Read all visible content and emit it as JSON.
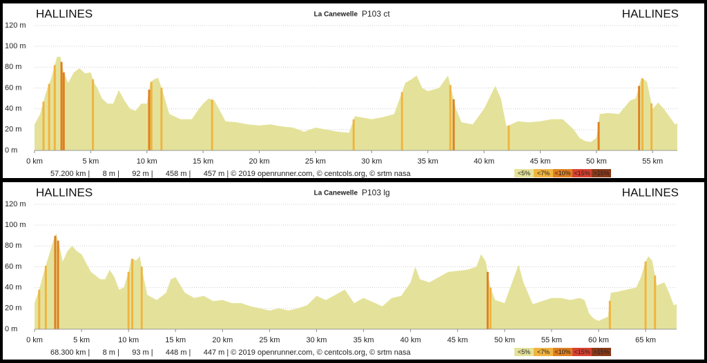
{
  "chart_data": [
    {
      "type": "area",
      "title": "La Canewelle",
      "subtitle": "P103 ct",
      "start_label": "HALLINES",
      "end_label": "HALLINES",
      "x": [
        0,
        0.5,
        1,
        1.5,
        2,
        2.3,
        2.6,
        3,
        3.5,
        4,
        4.5,
        5,
        5.3,
        5.6,
        6,
        6.5,
        7,
        7.5,
        8,
        8.5,
        9,
        9.5,
        10,
        10.3,
        10.6,
        11,
        11.4,
        12,
        13,
        14,
        14.5,
        15,
        15.5,
        16,
        16.5,
        17,
        18,
        19,
        20,
        21,
        22,
        23,
        24,
        25,
        26,
        27,
        28,
        28.5,
        29,
        30,
        31,
        32,
        33,
        33.5,
        34,
        34.5,
        35,
        36,
        36.8,
        37.5,
        38,
        39,
        40,
        41,
        41.5,
        42,
        43,
        44,
        45,
        46,
        47,
        48,
        48.5,
        49,
        49.5,
        50,
        50.3,
        51,
        52,
        53,
        53.5,
        54,
        54.5,
        55,
        55.5,
        56,
        57,
        57.2
      ],
      "values": [
        25,
        35,
        55,
        70,
        90,
        90,
        75,
        65,
        75,
        79,
        74,
        75,
        65,
        60,
        50,
        45,
        45,
        58,
        48,
        40,
        38,
        45,
        45,
        65,
        68,
        70,
        57,
        35,
        30,
        30,
        38,
        45,
        50,
        48,
        38,
        28,
        27,
        25,
        24,
        25,
        23,
        22,
        18,
        22,
        20,
        18,
        17,
        33,
        32,
        30,
        32,
        35,
        65,
        68,
        72,
        60,
        57,
        60,
        72,
        40,
        27,
        25,
        40,
        62,
        50,
        23,
        28,
        27,
        28,
        30,
        30,
        20,
        12,
        9,
        8,
        12,
        35,
        36,
        35,
        48,
        50,
        70,
        66,
        40,
        46,
        40,
        25,
        26
      ],
      "color": "#e4e29a",
      "steep_x": [
        0.8,
        1.3,
        1.8,
        2.4,
        2.6,
        5.2,
        10.2,
        10.4,
        11.3,
        15.8,
        28.4,
        32.7,
        37.0,
        37.3,
        42.2,
        50.2,
        53.8,
        54.1,
        54.9
      ],
      "steep_color": [
        "#f0b440",
        "#f0b440",
        "#f0b440",
        "#e07f20",
        "#e07f20",
        "#f0b440",
        "#e07f20",
        "#f0b440",
        "#f0b440",
        "#f0b440",
        "#f0b440",
        "#f0b440",
        "#f0b440",
        "#e07f20",
        "#f0b440",
        "#e07f20",
        "#e07f20",
        "#f0b440",
        "#f0b440"
      ],
      "xlim": [
        0,
        57.2
      ],
      "xticks": [
        {
          "value": 0,
          "label": "0 km"
        },
        {
          "value": 5,
          "label": "5 km"
        },
        {
          "value": 10,
          "label": "10 km"
        },
        {
          "value": 15,
          "label": "15 km"
        },
        {
          "value": 20,
          "label": "20 km"
        },
        {
          "value": 25,
          "label": "25 km"
        },
        {
          "value": 30,
          "label": "30 km"
        },
        {
          "value": 35,
          "label": "35 km"
        },
        {
          "value": 40,
          "label": "40 km"
        },
        {
          "value": 45,
          "label": "45 km"
        },
        {
          "value": 50,
          "label": "50 km"
        },
        {
          "value": 55,
          "label": "55 km"
        }
      ],
      "ylim": [
        0,
        120
      ],
      "yticks": [
        {
          "value": 0,
          "label": "0 m"
        },
        {
          "value": 20,
          "label": "20 m"
        },
        {
          "value": 40,
          "label": "40 m"
        },
        {
          "value": 60,
          "label": "60 m"
        },
        {
          "value": 80,
          "label": "80 m"
        },
        {
          "value": 100,
          "label": "100 m"
        },
        {
          "value": 120,
          "label": "120 m"
        }
      ],
      "grid": true,
      "footer": "57.200 km |      8 m |      92 m |      458 m |      457 m | © 2019 openrunner.com, © centcols.org, © srtm nasa",
      "legend": [
        {
          "label": "<5%",
          "color": "#e4e29a"
        },
        {
          "label": "<7%",
          "color": "#f0b440"
        },
        {
          "label": "<10%",
          "color": "#e07f20"
        },
        {
          "label": "<15%",
          "color": "#d94030"
        },
        {
          "label": ">15%",
          "color": "#8a3a1a"
        }
      ]
    },
    {
      "type": "area",
      "title": "La Canewelle",
      "subtitle": "P103 lg",
      "start_label": "HALLINES",
      "end_label": "HALLINES",
      "x": [
        0,
        0.5,
        1,
        1.5,
        2,
        2.3,
        2.7,
        3,
        3.5,
        4,
        4.5,
        5,
        6,
        7,
        7.5,
        8,
        8.5,
        9,
        9.5,
        10,
        10.3,
        10.8,
        11.2,
        11.6,
        12,
        13,
        14,
        14.5,
        15,
        16,
        17,
        18,
        19,
        20,
        21,
        22,
        23,
        24,
        25,
        26,
        27,
        28,
        29,
        30,
        31,
        32,
        33,
        34,
        35,
        36,
        37,
        38,
        39,
        40,
        40.5,
        41,
        42,
        43,
        44,
        45,
        46,
        47,
        47.5,
        48,
        48.5,
        49,
        50,
        51,
        51.5,
        52,
        53,
        54,
        55,
        56,
        57,
        58,
        58.5,
        59,
        59.5,
        60,
        60.5,
        61,
        61.3,
        62,
        63,
        64,
        64.5,
        65,
        65.3,
        65.7,
        66.2,
        67,
        67.5,
        68,
        68.3
      ],
      "values": [
        25,
        38,
        55,
        70,
        85,
        92,
        78,
        65,
        75,
        80,
        75,
        72,
        55,
        48,
        48,
        57,
        50,
        38,
        40,
        55,
        68,
        66,
        70,
        50,
        33,
        28,
        35,
        48,
        50,
        35,
        30,
        32,
        27,
        28,
        25,
        25,
        22,
        20,
        18,
        20,
        18,
        20,
        23,
        32,
        28,
        33,
        38,
        25,
        30,
        26,
        22,
        30,
        32,
        45,
        60,
        48,
        45,
        50,
        55,
        56,
        57,
        60,
        72,
        65,
        40,
        28,
        25,
        50,
        62,
        45,
        24,
        27,
        30,
        30,
        28,
        30,
        28,
        15,
        10,
        8,
        10,
        12,
        35,
        36,
        38,
        40,
        50,
        65,
        70,
        66,
        42,
        45,
        35,
        23,
        24
      ],
      "color": "#e4e29a",
      "steep_x": [
        0.5,
        1.2,
        2.2,
        2.5,
        10.0,
        10.4,
        11.4,
        48.2,
        48.5,
        61.2,
        65.0,
        66.0
      ],
      "steep_color": [
        "#f0b440",
        "#f0b440",
        "#e07f20",
        "#e07f20",
        "#f0b440",
        "#f0b440",
        "#f0b440",
        "#e07f20",
        "#f0b440",
        "#f0b440",
        "#f0b440",
        "#f0b440"
      ],
      "xlim": [
        0,
        68.3
      ],
      "xticks": [
        {
          "value": 0,
          "label": "0 km"
        },
        {
          "value": 5,
          "label": "5 km"
        },
        {
          "value": 10,
          "label": "10 km"
        },
        {
          "value": 15,
          "label": "15 km"
        },
        {
          "value": 20,
          "label": "20 km"
        },
        {
          "value": 25,
          "label": "25 km"
        },
        {
          "value": 30,
          "label": "30 km"
        },
        {
          "value": 35,
          "label": "35 km"
        },
        {
          "value": 40,
          "label": "40 km"
        },
        {
          "value": 45,
          "label": "45 km"
        },
        {
          "value": 50,
          "label": "50 km"
        },
        {
          "value": 55,
          "label": "55 km"
        },
        {
          "value": 60,
          "label": "60 km"
        },
        {
          "value": 65,
          "label": "65 km"
        }
      ],
      "ylim": [
        0,
        120
      ],
      "yticks": [
        {
          "value": 0,
          "label": "0 m"
        },
        {
          "value": 20,
          "label": "20 m"
        },
        {
          "value": 40,
          "label": "40 m"
        },
        {
          "value": 60,
          "label": "60 m"
        },
        {
          "value": 80,
          "label": "80 m"
        },
        {
          "value": 100,
          "label": "100 m"
        },
        {
          "value": 120,
          "label": "120 m"
        }
      ],
      "grid": true,
      "footer": "68.300 km |      8 m |      93 m |      448 m |      447 m | © 2019 openrunner.com, © centcols.org, © srtm nasa",
      "legend": [
        {
          "label": "<5%",
          "color": "#e4e29a"
        },
        {
          "label": "<7%",
          "color": "#f0b440"
        },
        {
          "label": "<10%",
          "color": "#e07f20"
        },
        {
          "label": "<15%",
          "color": "#d94030"
        },
        {
          "label": ">15%",
          "color": "#8a3a1a"
        }
      ]
    }
  ]
}
